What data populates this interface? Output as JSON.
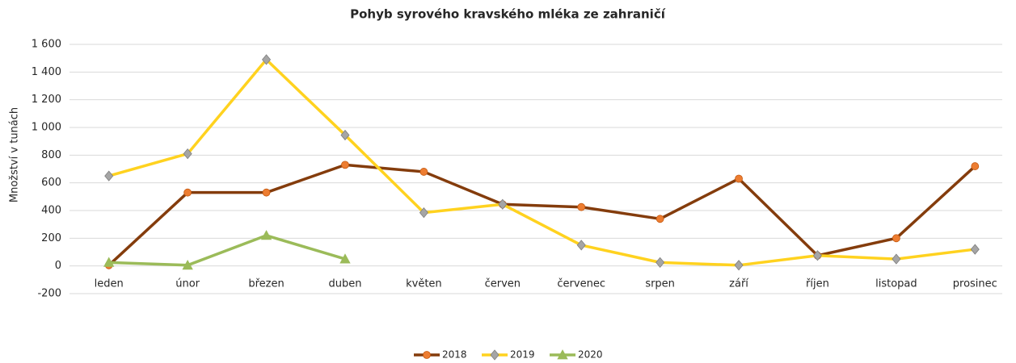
{
  "chart_data": {
    "type": "line",
    "title": "Pohyb syrového kravského mléka ze zahraničí",
    "y_label": "Množství v tunách",
    "categories": [
      "leden",
      "únor",
      "březen",
      "duben",
      "květen",
      "červen",
      "červenec",
      "srpen",
      "září",
      "říjen",
      "listopad",
      "prosinec"
    ],
    "series": [
      {
        "name": "2018",
        "color": "#843c0c",
        "marker": "circle",
        "marker_color": "#ed7d31",
        "values": [
          5,
          530,
          530,
          730,
          680,
          445,
          425,
          340,
          630,
          75,
          200,
          720
        ]
      },
      {
        "name": "2019",
        "color": "#ffd21f",
        "marker": "diamond",
        "marker_color": "#a5a5a5",
        "values": [
          650,
          810,
          1490,
          945,
          385,
          445,
          150,
          25,
          5,
          75,
          50,
          120
        ]
      },
      {
        "name": "2020",
        "color": "#9bbb59",
        "marker": "triangle",
        "marker_color": "#9bbb59",
        "values": [
          25,
          5,
          220,
          50,
          null,
          null,
          null,
          null,
          null,
          null,
          null,
          null
        ]
      }
    ],
    "ylim": [
      -200,
      1600
    ],
    "yticks": [
      -200,
      0,
      200,
      400,
      600,
      800,
      {
        "value": 1000,
        "label": "1 000"
      },
      {
        "value": 1200,
        "label": "1 200"
      },
      {
        "value": 1400,
        "label": "1 400"
      },
      {
        "value": 1600,
        "label": "1 600"
      }
    ],
    "grid": true,
    "legend": "bottom"
  }
}
